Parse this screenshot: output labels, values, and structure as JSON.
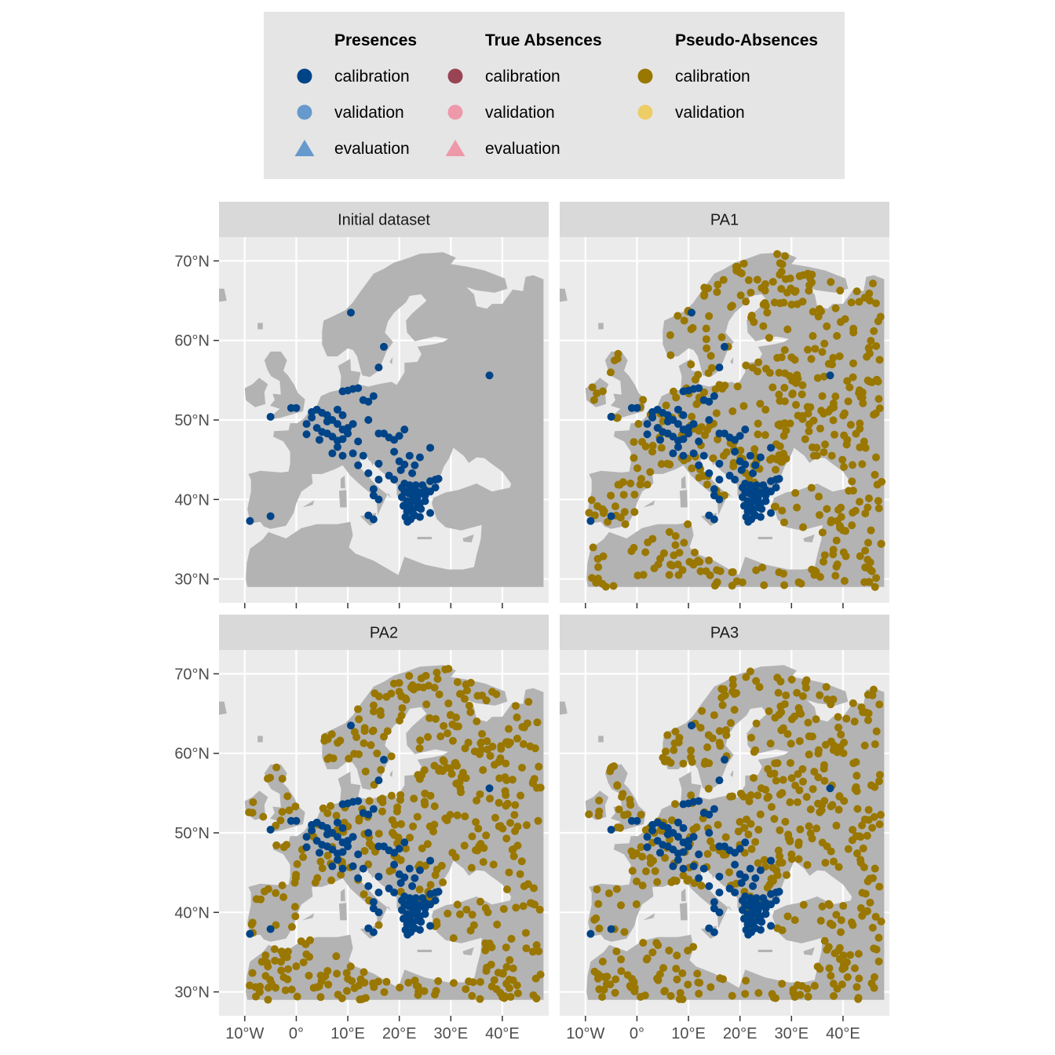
{
  "colors": {
    "presence_calibration": "#004488",
    "presence_validation": "#6699cc",
    "presence_evaluation": "#6699cc",
    "absence_calibration": "#994455",
    "absence_validation": "#ee99aa",
    "absence_evaluation": "#ee99aa",
    "pseudo_calibration": "#997700",
    "pseudo_validation": "#eecc66",
    "panel_bg": "#ebebeb",
    "strip_bg": "#d9d9d9",
    "land": "#b3b3b3",
    "legend_bg": "#e5e5e5"
  },
  "legend": {
    "groups": [
      {
        "title": "Presences",
        "entries": [
          {
            "label": "calibration",
            "shape": "circle",
            "color_key": "presence_calibration"
          },
          {
            "label": "validation",
            "shape": "circle",
            "color_key": "presence_validation"
          },
          {
            "label": "evaluation",
            "shape": "triangle",
            "color_key": "presence_evaluation"
          }
        ]
      },
      {
        "title": "True Absences",
        "entries": [
          {
            "label": "calibration",
            "shape": "circle",
            "color_key": "absence_calibration"
          },
          {
            "label": "validation",
            "shape": "circle",
            "color_key": "absence_validation"
          },
          {
            "label": "evaluation",
            "shape": "triangle",
            "color_key": "absence_evaluation"
          }
        ]
      },
      {
        "title": "Pseudo-Absences",
        "entries": [
          {
            "label": "calibration",
            "shape": "circle",
            "color_key": "pseudo_calibration"
          },
          {
            "label": "validation",
            "shape": "circle",
            "color_key": "pseudo_validation"
          }
        ]
      }
    ]
  },
  "chart_data": {
    "type": "scatter",
    "facets": [
      "Initial dataset",
      "PA1",
      "PA2",
      "PA3"
    ],
    "x_ticks": [
      {
        "value": -10,
        "label": "10°W"
      },
      {
        "value": 0,
        "label": "0°"
      },
      {
        "value": 10,
        "label": "10°E"
      },
      {
        "value": 20,
        "label": "20°E"
      },
      {
        "value": 30,
        "label": "30°E"
      },
      {
        "value": 40,
        "label": "40°E"
      }
    ],
    "y_ticks": [
      {
        "value": 30,
        "label": "30°N"
      },
      {
        "value": 40,
        "label": "40°N"
      },
      {
        "value": 50,
        "label": "50°N"
      },
      {
        "value": 60,
        "label": "60°N"
      },
      {
        "value": 70,
        "label": "70°N"
      }
    ],
    "xlim": [
      -15,
      49
    ],
    "ylim": [
      27,
      73
    ],
    "grid": true,
    "pseudo_absence_count_per_set": 500,
    "presences_calibration": [
      [
        -9,
        37.3
      ],
      [
        -5,
        37.9
      ],
      [
        -5,
        50.4
      ],
      [
        -1,
        51.5
      ],
      [
        0,
        51.5
      ],
      [
        3,
        51
      ],
      [
        4,
        51.3
      ],
      [
        5,
        50.9
      ],
      [
        6,
        50.6
      ],
      [
        6,
        49.8
      ],
      [
        7,
        50
      ],
      [
        8,
        49.5
      ],
      [
        8,
        51.3
      ],
      [
        9,
        50.6
      ],
      [
        9,
        48.8
      ],
      [
        10,
        49
      ],
      [
        3,
        50.3
      ],
      [
        2,
        49.5
      ],
      [
        4,
        49
      ],
      [
        5,
        48.5
      ],
      [
        6,
        48.3
      ],
      [
        7,
        47.9
      ],
      [
        8,
        47.4
      ],
      [
        9,
        47.6
      ],
      [
        7,
        45.8
      ],
      [
        9,
        45.5
      ],
      [
        8,
        46.6
      ],
      [
        9,
        53.6
      ],
      [
        10,
        53.7
      ],
      [
        11,
        53.9
      ],
      [
        12,
        54
      ],
      [
        13,
        52.5
      ],
      [
        14,
        52.3
      ],
      [
        15,
        53
      ],
      [
        11,
        49.5
      ],
      [
        10,
        48.3
      ],
      [
        12,
        47.3
      ],
      [
        11,
        45.8
      ],
      [
        12,
        44.3
      ],
      [
        13,
        45.5
      ],
      [
        14,
        43.3
      ],
      [
        16,
        44.5
      ],
      [
        16,
        42.5
      ],
      [
        15,
        41.3
      ],
      [
        15,
        40.5
      ],
      [
        16,
        40
      ],
      [
        14,
        38
      ],
      [
        15,
        37.5
      ],
      [
        10.6,
        63.5
      ],
      [
        17,
        59.2
      ],
      [
        16,
        56.6
      ],
      [
        14,
        50
      ],
      [
        16,
        48.3
      ],
      [
        17,
        48.3
      ],
      [
        18,
        47.8
      ],
      [
        19,
        47.5
      ],
      [
        20,
        48
      ],
      [
        21,
        48.8
      ],
      [
        19,
        46
      ],
      [
        20,
        44.8
      ],
      [
        21,
        44.4
      ],
      [
        22,
        45.5
      ],
      [
        23,
        44.3
      ],
      [
        24,
        45.3
      ],
      [
        26,
        46.5
      ],
      [
        26,
        42.3
      ],
      [
        27,
        42.5
      ],
      [
        27,
        41.5
      ],
      [
        26,
        38.3
      ],
      [
        37.5,
        55.6
      ],
      [
        25,
        40.5
      ],
      [
        24,
        40.8
      ],
      [
        23,
        41.3
      ],
      [
        22,
        41.8
      ],
      [
        21,
        42
      ],
      [
        21,
        41
      ],
      [
        20.5,
        40.3
      ],
      [
        21.5,
        39.8
      ],
      [
        22,
        39.3
      ],
      [
        22.5,
        38.8
      ],
      [
        21.5,
        38.5
      ],
      [
        21.2,
        37.8
      ],
      [
        22.2,
        37.5
      ],
      [
        23,
        38
      ],
      [
        24,
        37.8
      ],
      [
        23.5,
        39
      ],
      [
        24,
        39.5
      ],
      [
        25,
        39.8
      ],
      [
        25,
        41.2
      ],
      [
        26,
        41
      ],
      [
        22.5,
        40.5
      ],
      [
        23.5,
        40.2
      ],
      [
        21.8,
        40.8
      ],
      [
        20.8,
        39.2
      ],
      [
        22.8,
        39.8
      ],
      [
        23.2,
        41.8
      ],
      [
        24.5,
        41.8
      ],
      [
        22,
        41.3
      ],
      [
        20.5,
        41.5
      ],
      [
        23.8,
        40.9
      ],
      [
        22.6,
        38.3
      ],
      [
        21.6,
        37.2
      ],
      [
        24.2,
        38.8
      ],
      [
        2,
        48.2
      ],
      [
        4.5,
        47.5
      ],
      [
        18,
        43
      ],
      [
        19,
        42.5
      ],
      [
        22.5,
        43.3
      ],
      [
        20.3,
        43.7
      ],
      [
        27.6,
        42.6
      ]
    ]
  }
}
